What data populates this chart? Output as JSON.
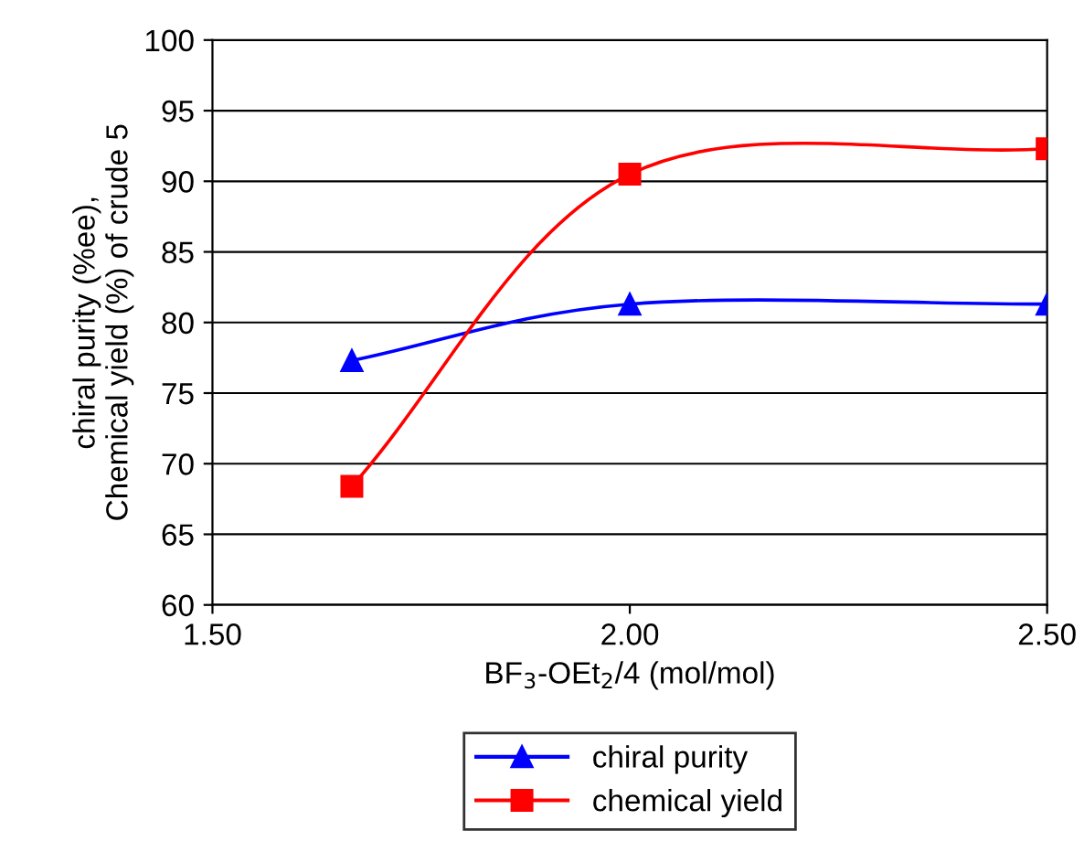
{
  "chart_data": {
    "type": "line",
    "xlabel": "BF$_{3}$-OEt$_{2}$/4 (mol/mol)",
    "ylabel": "chiral purity (%ee),\nChemical yield (%) of crude 5",
    "x": [
      1.667,
      2.0,
      2.5
    ],
    "series": [
      {
        "name": "chiral purity",
        "color": "#0000ff",
        "marker": "triangle",
        "values": [
          77.3,
          81.3,
          81.3
        ]
      },
      {
        "name": "chemical yield",
        "color": "#ff0000",
        "marker": "square",
        "values": [
          68.4,
          90.5,
          92.3
        ]
      }
    ],
    "xlim": [
      1.5,
      2.5
    ],
    "xticks": [
      {
        "value": 1.5,
        "label": "1.50"
      },
      {
        "value": 2.0,
        "label": "2.00"
      },
      {
        "value": 2.5,
        "label": "2.50"
      }
    ],
    "ylim": [
      60,
      100
    ],
    "yticks": [
      60,
      65,
      70,
      75,
      80,
      85,
      90,
      95,
      100
    ],
    "grid": "y",
    "legend": "bottom",
    "line_style": "solid"
  }
}
